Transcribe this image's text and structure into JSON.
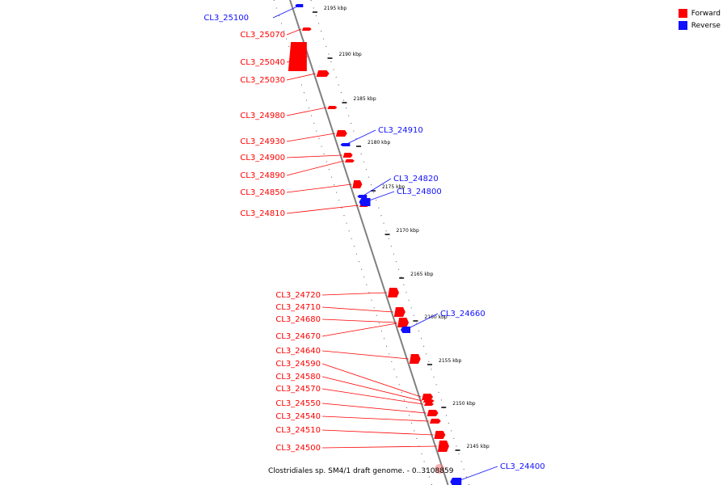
{
  "colors": {
    "forward": "#ff0000",
    "reverse": "#1010ff",
    "backbone": "#808080"
  },
  "legend": [
    {
      "label": "Forward",
      "color": "#ff0000"
    },
    {
      "label": "Reverse",
      "color": "#1010ff"
    }
  ],
  "caption": "Clostridiales sp. SM4/1 draft genome. - 0..3108859",
  "ticks": [
    "2195 kbp",
    "2190 kbp",
    "2185 kbp",
    "2180 kbp",
    "2175 kbp",
    "2170 kbp",
    "2165 kbp",
    "2160 kbp",
    "2155 kbp",
    "2150 kbp",
    "2145 kbp"
  ],
  "forward_genes": [
    "CL3_25070",
    "CL3_25040",
    "CL3_25030",
    "CL3_24980",
    "CL3_24930",
    "CL3_24900",
    "CL3_24890",
    "CL3_24850",
    "CL3_24810",
    "CL3_24720",
    "CL3_24710",
    "CL3_24680",
    "CL3_24670",
    "CL3_24640",
    "CL3_24590",
    "CL3_24580",
    "CL3_24570",
    "CL3_24550",
    "CL3_24540",
    "CL3_24510",
    "CL3_24500"
  ],
  "reverse_genes": [
    "CL3_25100",
    "CL3_24910",
    "CL3_24820",
    "CL3_24800",
    "CL3_24660",
    "CL3_24400"
  ]
}
